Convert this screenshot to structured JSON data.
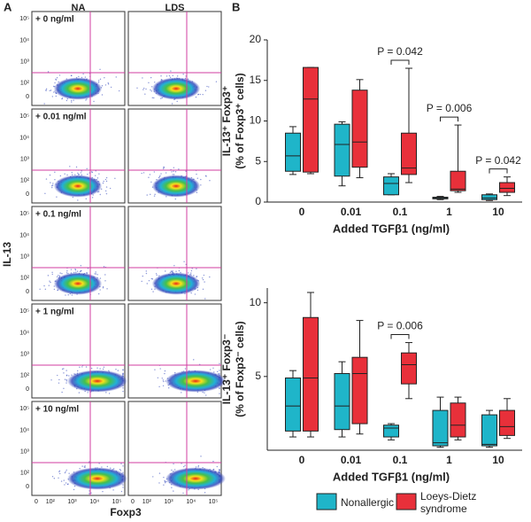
{
  "panel_a": {
    "label": "A",
    "columns": [
      "NA",
      "LDS"
    ],
    "rows": [
      "+ 0 ng/ml",
      "+ 0.01 ng/ml",
      "+ 0.1 ng/ml",
      "+ 1 ng/ml",
      "+ 10 ng/ml"
    ],
    "y_label": "IL-13",
    "x_label": "Foxp3",
    "yticks": [
      {
        "value": 100000,
        "label": "10⁵"
      },
      {
        "value": 10000,
        "label": "10⁴"
      },
      {
        "value": 1000,
        "label": "10³"
      },
      {
        "value": 100,
        "label": "10²"
      },
      0
    ],
    "xticks": [
      0,
      {
        "value": 100,
        "label": "10²"
      },
      {
        "value": 1000,
        "label": "10³"
      },
      {
        "value": 10000,
        "label": "10⁴"
      },
      {
        "value": 100000,
        "label": "10⁵"
      }
    ]
  },
  "panel_b_label": "B",
  "chart_data": [
    {
      "type": "box",
      "ylabel": [
        "IL-13⁺ Foxp3⁺",
        "(% of Foxp3⁺ cells)"
      ],
      "xlabel": "Added TGFβ1 (ng/ml)",
      "categories": [
        "0",
        "0.01",
        "0.1",
        "1",
        "10"
      ],
      "series": [
        {
          "color": "#1fb5c9",
          "values": [
            {
              "min": 3.4,
              "q1": 3.8,
              "median": 5.7,
              "q3": 8.5,
              "max": 9.3
            },
            {
              "min": 2.0,
              "q1": 3.2,
              "median": 7.1,
              "q3": 9.6,
              "max": 9.9
            },
            {
              "min": 0.9,
              "q1": 0.9,
              "median": 2.3,
              "q3": 3.1,
              "max": 3.5
            },
            {
              "min": 0.3,
              "q1": 0.4,
              "median": 0.5,
              "q3": 0.6,
              "max": 0.7
            },
            {
              "min": 0.2,
              "q1": 0.3,
              "median": 0.5,
              "q3": 0.9,
              "max": 1.0
            }
          ]
        },
        {
          "color": "#e8303a",
          "values": [
            {
              "min": 3.5,
              "q1": 3.7,
              "median": 12.7,
              "q3": 16.6,
              "max": 16.6
            },
            {
              "min": 3.0,
              "q1": 4.3,
              "median": 7.4,
              "q3": 13.8,
              "max": 15.1
            },
            {
              "min": 2.4,
              "q1": 3.4,
              "median": 4.2,
              "q3": 8.5,
              "max": 16.5
            },
            {
              "min": 1.2,
              "q1": 1.4,
              "median": 1.6,
              "q3": 3.8,
              "max": 9.5
            },
            {
              "min": 0.8,
              "q1": 1.2,
              "median": 1.7,
              "q3": 2.4,
              "max": 3.1
            }
          ]
        }
      ],
      "ylim": [
        0,
        20
      ],
      "yticks": [
        0,
        5,
        10,
        15,
        20
      ],
      "annotations": [
        "P = 0.042",
        "P = 0.006",
        "P = 0.042"
      ]
    },
    {
      "type": "box",
      "ylabel": [
        "IL-13⁺ Foxp3⁻",
        "(% of Foxp3⁻ cells)"
      ],
      "xlabel": "Added TGFβ1 (ng/ml)",
      "categories": [
        "0",
        "0.01",
        "0.1",
        "1",
        "10"
      ],
      "series": [
        {
          "name": "Nonallergic",
          "color": "#1fb5c9",
          "values": [
            {
              "min": 0.9,
              "q1": 1.3,
              "median": 3.0,
              "q3": 4.9,
              "max": 5.4
            },
            {
              "min": 0.9,
              "q1": 1.4,
              "median": 3.0,
              "q3": 5.2,
              "max": 6.0
            },
            {
              "min": 0.7,
              "q1": 0.9,
              "median": 1.5,
              "q3": 1.7,
              "max": 1.8
            },
            {
              "min": 0.2,
              "q1": 0.3,
              "median": 0.5,
              "q3": 2.7,
              "max": 3.6
            },
            {
              "min": 0.2,
              "q1": 0.3,
              "median": 0.4,
              "q3": 2.4,
              "max": 2.7
            }
          ]
        },
        {
          "name": "Loeys-Dietz syndrome",
          "color": "#e8303a",
          "values": [
            {
              "min": 0.9,
              "q1": 1.3,
              "median": 4.9,
              "q3": 9.0,
              "max": 10.7
            },
            {
              "min": 1.1,
              "q1": 1.8,
              "median": 5.2,
              "q3": 6.3,
              "max": 8.8
            },
            {
              "min": 3.5,
              "q1": 4.5,
              "median": 5.8,
              "q3": 6.6,
              "max": 7.3
            },
            {
              "min": 0.7,
              "q1": 0.9,
              "median": 1.7,
              "q3": 3.2,
              "max": 3.6
            },
            {
              "min": 0.8,
              "q1": 1.0,
              "median": 1.6,
              "q3": 2.7,
              "max": 3.5
            }
          ]
        }
      ],
      "ylim": [
        0,
        11
      ],
      "yticks": [
        5,
        10
      ],
      "annotations": [
        "P = 0.006"
      ],
      "legend": "bottom"
    }
  ]
}
